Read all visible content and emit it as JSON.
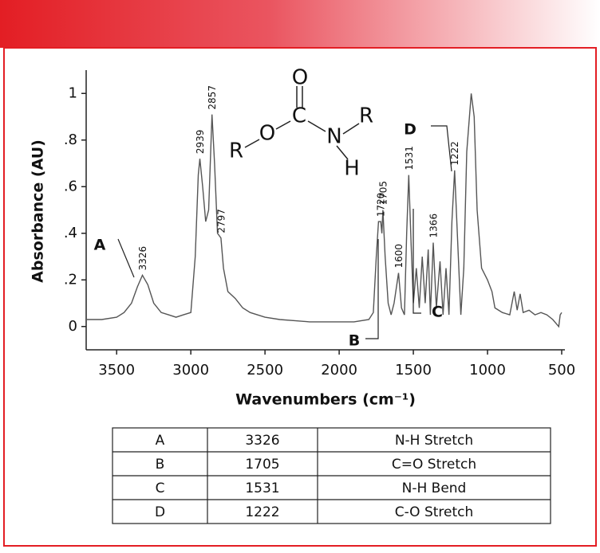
{
  "chart_data": {
    "type": "line",
    "y_label": "Absorbance (AU)",
    "x_label": "Wavenumbers (cm⁻¹)",
    "color": "#555555",
    "xlim": [
      3700,
      500
    ],
    "ylim": [
      -0.1,
      1.1
    ],
    "xticks": [
      3500,
      3000,
      2500,
      2000,
      1500,
      1000,
      500
    ],
    "yticks": [
      {
        "value": 1,
        "label": "1"
      },
      {
        "value": 0.8,
        "label": ".8"
      },
      {
        "value": 0.6,
        "label": ".6"
      },
      {
        "value": 0.4,
        "label": ".4"
      },
      {
        "value": 0.2,
        "label": ".2"
      },
      0
    ],
    "x": [
      3700,
      3600,
      3500,
      3450,
      3400,
      3360,
      3326,
      3290,
      3250,
      3200,
      3150,
      3100,
      3050,
      3000,
      2970,
      2950,
      2939,
      2920,
      2900,
      2880,
      2857,
      2840,
      2820,
      2797,
      2780,
      2750,
      2700,
      2650,
      2600,
      2500,
      2400,
      2300,
      2200,
      2100,
      2000,
      1900,
      1800,
      1770,
      1750,
      1735,
      1720,
      1712,
      1705,
      1690,
      1670,
      1650,
      1630,
      1600,
      1580,
      1560,
      1545,
      1531,
      1515,
      1500,
      1480,
      1460,
      1440,
      1420,
      1400,
      1385,
      1366,
      1345,
      1320,
      1300,
      1280,
      1260,
      1240,
      1222,
      1200,
      1180,
      1160,
      1140,
      1110,
      1090,
      1070,
      1040,
      1000,
      970,
      950,
      900,
      850,
      820,
      800,
      780,
      760,
      720,
      680,
      640,
      600,
      560,
      520,
      510,
      500
    ],
    "values": [
      0.03,
      0.03,
      0.04,
      0.06,
      0.1,
      0.17,
      0.22,
      0.18,
      0.1,
      0.06,
      0.05,
      0.04,
      0.05,
      0.06,
      0.3,
      0.65,
      0.72,
      0.6,
      0.45,
      0.5,
      0.91,
      0.7,
      0.4,
      0.38,
      0.25,
      0.15,
      0.12,
      0.08,
      0.06,
      0.04,
      0.03,
      0.025,
      0.02,
      0.02,
      0.02,
      0.02,
      0.03,
      0.06,
      0.3,
      0.45,
      0.45,
      0.4,
      0.5,
      0.3,
      0.1,
      0.05,
      0.1,
      0.23,
      0.08,
      0.05,
      0.4,
      0.65,
      0.35,
      0.1,
      0.25,
      0.08,
      0.3,
      0.1,
      0.33,
      0.05,
      0.36,
      0.08,
      0.28,
      0.05,
      0.25,
      0.05,
      0.45,
      0.67,
      0.35,
      0.05,
      0.25,
      0.75,
      1.0,
      0.9,
      0.5,
      0.25,
      0.2,
      0.15,
      0.08,
      0.06,
      0.05,
      0.15,
      0.07,
      0.14,
      0.06,
      0.07,
      0.05,
      0.06,
      0.05,
      0.03,
      0.0,
      0.05,
      0.06
    ],
    "annotations": [
      3326,
      2939,
      2857,
      2797,
      1720,
      1705,
      1600,
      1531,
      1366,
      1222
    ],
    "callouts": [
      "A",
      "B",
      "C",
      "D"
    ]
  },
  "structure": {
    "atoms": [
      "O",
      "C",
      "N",
      "R",
      "O",
      "R",
      "H"
    ]
  },
  "table": {
    "rows": [
      [
        "A",
        3326,
        "N-H Stretch"
      ],
      [
        "B",
        1705,
        "C=O Stretch"
      ],
      [
        "C",
        1531,
        "N-H Bend"
      ],
      [
        "D",
        1222,
        "C-O Stretch"
      ]
    ]
  }
}
